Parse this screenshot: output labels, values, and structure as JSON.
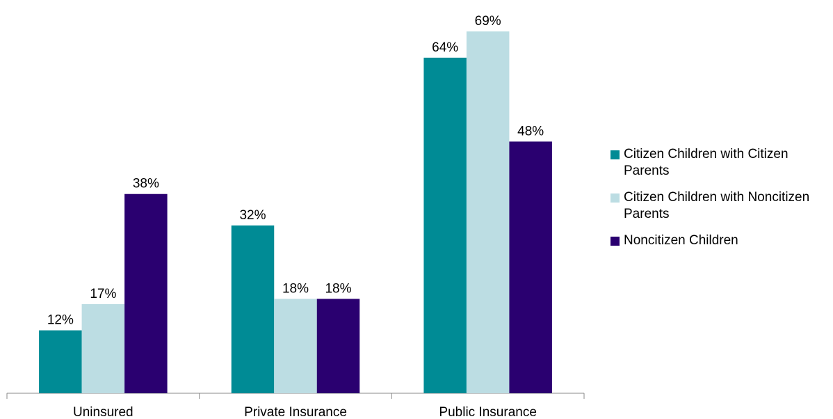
{
  "chart_data": {
    "type": "bar",
    "categories": [
      "Uninsured",
      "Private Insurance",
      "Public Insurance"
    ],
    "series": [
      {
        "name": "Citizen Children with Citizen Parents",
        "color": "#008b95",
        "values": [
          12,
          32,
          64
        ],
        "value_labels": [
          "12%",
          "32%",
          "64%"
        ]
      },
      {
        "name": "Citizen Children with Noncitizen Parents",
        "color": "#bcdde3",
        "values": [
          17,
          18,
          69
        ],
        "value_labels": [
          "17%",
          "18%",
          "69%"
        ]
      },
      {
        "name": "Noncitizen Children",
        "color": "#2a0070",
        "values": [
          38,
          18,
          48
        ],
        "value_labels": [
          "38%",
          "18%",
          "48%"
        ]
      }
    ],
    "ylim": [
      0,
      75
    ],
    "legend": "right"
  }
}
